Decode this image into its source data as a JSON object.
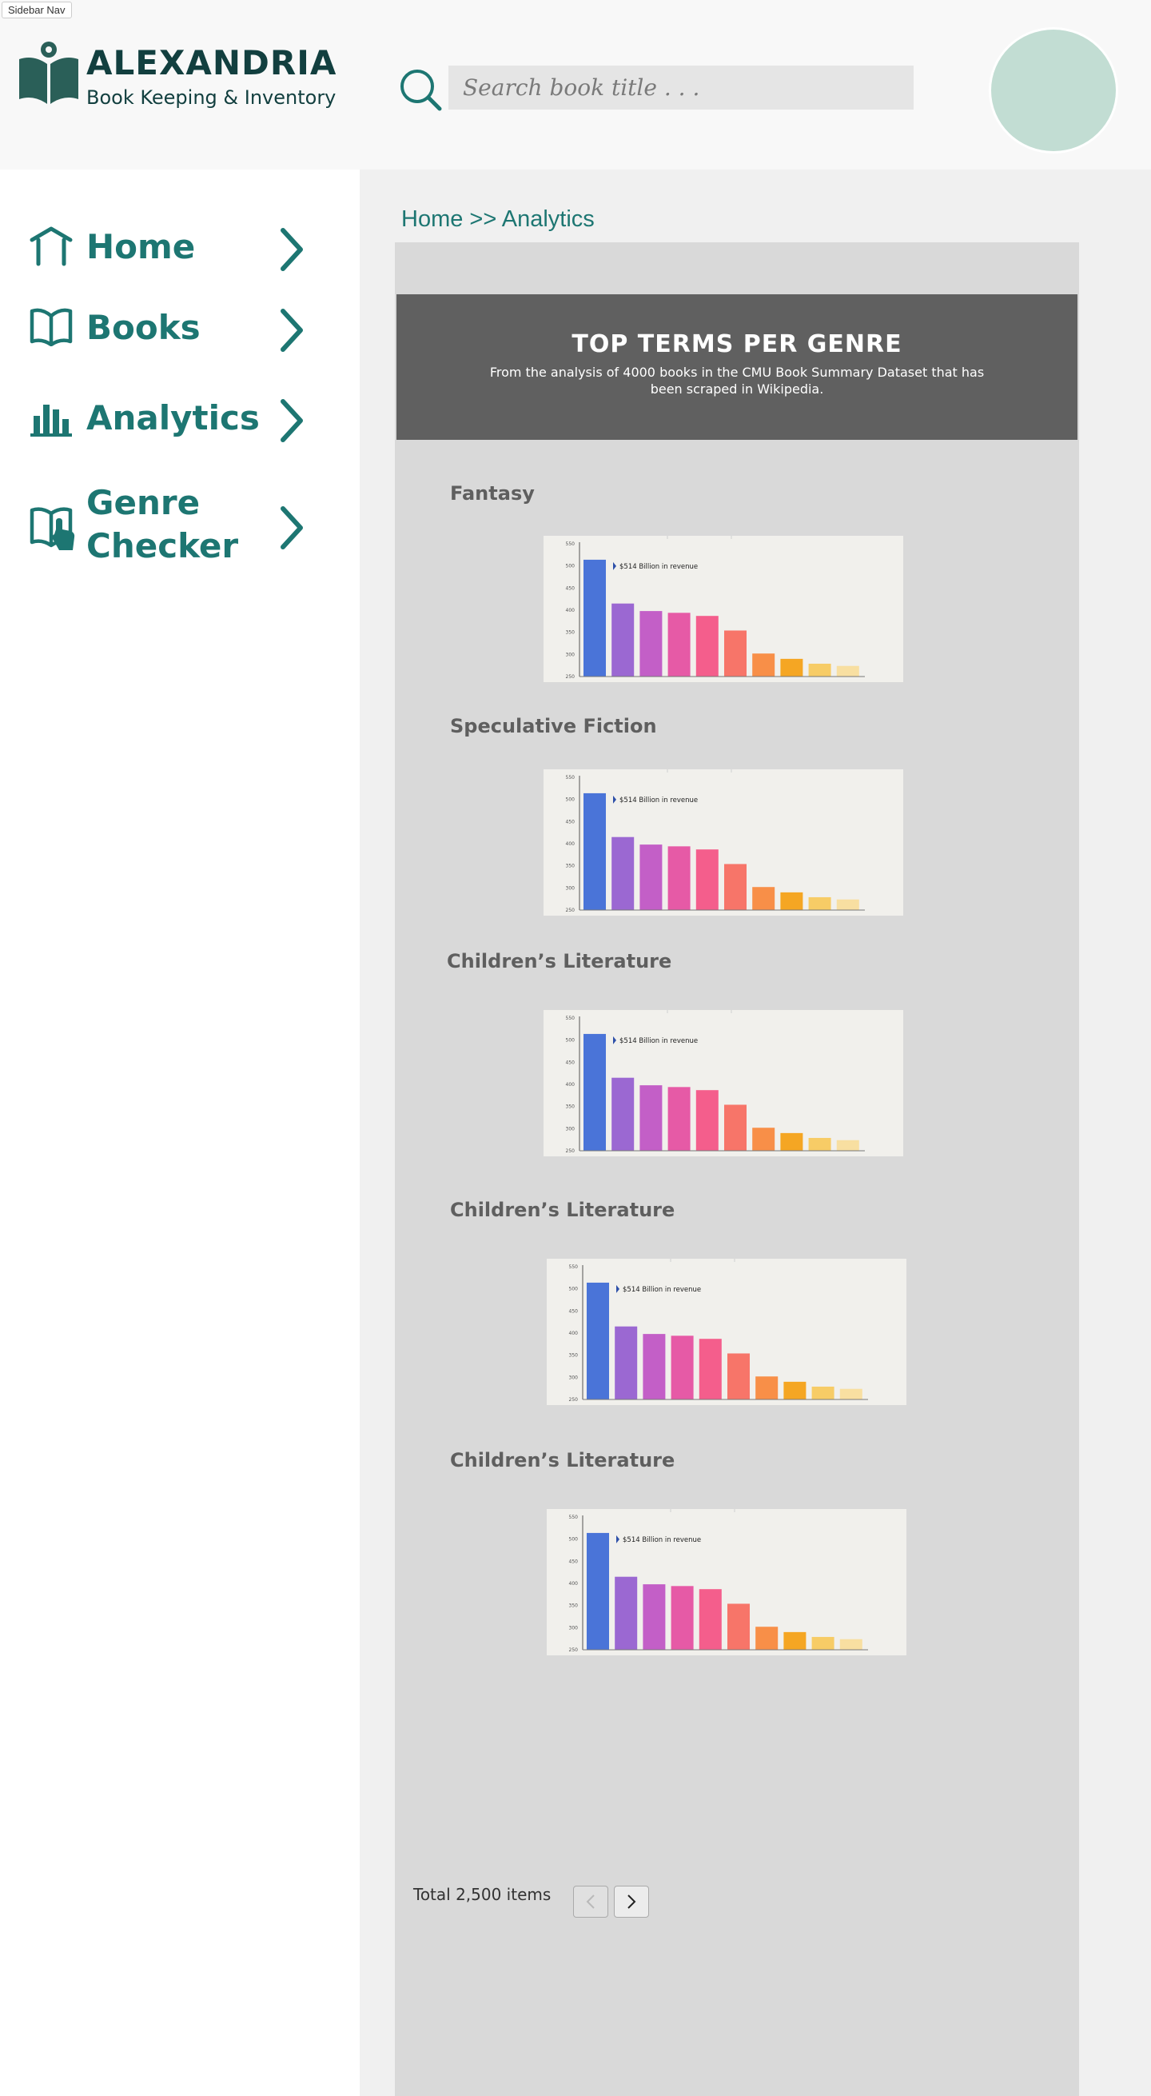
{
  "sidebar_tag": "Sidebar Nav",
  "brand": {
    "title": "ALEXANDRIA",
    "subtitle": "Book Keeping & Inventory"
  },
  "search": {
    "placeholder": "Search book title . . .",
    "value": ""
  },
  "nav": {
    "items": [
      {
        "label": "Home",
        "icon": "home-icon"
      },
      {
        "label": "Books",
        "icon": "book-icon"
      },
      {
        "label": "Analytics",
        "icon": "bar-chart-icon"
      },
      {
        "label": "Genre Checker",
        "icon": "book-touch-icon"
      }
    ]
  },
  "breadcrumb": "Home >> Analytics",
  "banner": {
    "title": "TOP TERMS PER GENRE",
    "subtitle": "From the analysis of 4000 books in the CMU Book Summary Dataset that has been scraped in Wikipedia."
  },
  "genres": [
    {
      "name": "Fantasy"
    },
    {
      "name": "Speculative Fiction"
    },
    {
      "name": "Children’s Literature"
    },
    {
      "name": "Children’s Literature"
    },
    {
      "name": "Children’s Literature"
    }
  ],
  "chart_data": {
    "type": "bar",
    "annotation": "$514 Billion in revenue",
    "y_ticks": [
      250,
      300,
      350,
      400,
      450,
      500,
      550
    ],
    "ylim": [
      250,
      550
    ],
    "values": [
      514,
      415,
      398,
      394,
      387,
      354,
      302,
      290,
      279,
      274
    ],
    "colors": [
      "#4a74d8",
      "#9b68d2",
      "#c35fc7",
      "#e65aa6",
      "#f45e8c",
      "#f77569",
      "#f88f48",
      "#f5a623",
      "#f7cc66",
      "#f8dfa1"
    ]
  },
  "pagination": {
    "total_text": "Total 2,500 items"
  },
  "colors": {
    "accent": "#1d7672",
    "brand_dark": "#123f3f",
    "avatar": "#c2ddd3",
    "banner": "#606060",
    "panel": "#d9d9d9"
  }
}
